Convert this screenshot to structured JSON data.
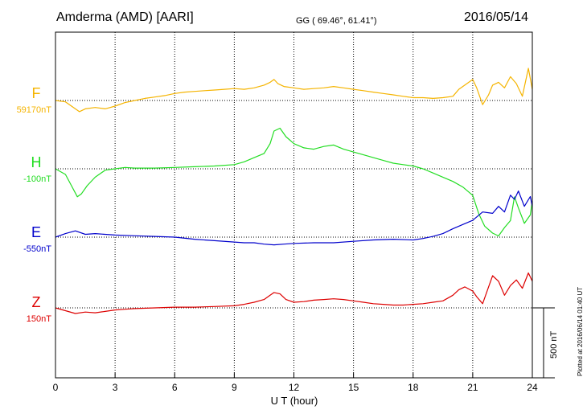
{
  "header": {
    "station": "Amderma (AMD)  [AARI]",
    "coords": "GG ( 69.46°,  61.41°)",
    "date": "2016/05/14"
  },
  "footer": {
    "xlabel": "U T (hour)",
    "plotted": "Plotted at 2016/06/14 01:40 UT",
    "scale_label": "500 nT"
  },
  "colors": {
    "F": "#f5b400",
    "H": "#22dd22",
    "E": "#0000cc",
    "Z": "#dd0000",
    "axes": "#000000"
  },
  "chart_data": {
    "type": "line",
    "title": "Amderma (AMD)  [AARI]",
    "xlabel": "U T (hour)",
    "ylabel": "",
    "xlim": [
      0,
      24
    ],
    "xticks": [
      0,
      3,
      6,
      9,
      12,
      15,
      18,
      21,
      24
    ],
    "grid": true,
    "scale_bar_nT": 500,
    "series": [
      {
        "name": "F",
        "baseline_label": "59170nT",
        "baseline": 59170,
        "x": [
          0,
          0.5,
          1,
          1.2,
          1.5,
          2,
          2.5,
          3,
          3.5,
          4,
          4.5,
          5,
          5.5,
          6,
          6.5,
          7,
          7.5,
          8,
          8.5,
          9,
          9.5,
          10,
          10.5,
          10.8,
          11,
          11.2,
          11.5,
          12,
          12.5,
          13,
          13.5,
          14,
          14.5,
          15,
          15.5,
          16,
          16.5,
          17,
          17.5,
          18,
          18.5,
          19,
          19.5,
          20,
          20.3,
          20.6,
          21,
          21.2,
          21.5,
          21.8,
          22,
          22.3,
          22.6,
          22.9,
          23.2,
          23.5,
          23.8,
          24
        ],
        "values": [
          59170,
          59160,
          59110,
          59090,
          59110,
          59120,
          59110,
          59130,
          59155,
          59170,
          59185,
          59195,
          59205,
          59220,
          59230,
          59235,
          59240,
          59245,
          59250,
          59255,
          59250,
          59260,
          59280,
          59300,
          59320,
          59290,
          59270,
          59260,
          59250,
          59255,
          59260,
          59270,
          59260,
          59250,
          59240,
          59230,
          59220,
          59210,
          59200,
          59190,
          59190,
          59185,
          59190,
          59200,
          59250,
          59280,
          59320,
          59260,
          59140,
          59210,
          59280,
          59300,
          59260,
          59340,
          59290,
          59200,
          59400,
          59250
        ]
      },
      {
        "name": "H",
        "baseline_label": "-100nT",
        "baseline": -100,
        "x": [
          0,
          0.5,
          0.8,
          1.1,
          1.3,
          1.6,
          2,
          2.5,
          3,
          3.5,
          4,
          5,
          6,
          7,
          8,
          9,
          9.5,
          10,
          10.5,
          10.8,
          11,
          11.3,
          11.6,
          12,
          12.5,
          13,
          13.5,
          14,
          14.5,
          15,
          15.5,
          16,
          16.5,
          17,
          17.5,
          18,
          18.5,
          19,
          19.5,
          20,
          20.5,
          21,
          21.3,
          21.6,
          22,
          22.3,
          22.6,
          22.9,
          23.1,
          23.3,
          23.6,
          23.9,
          24
        ],
        "values": [
          -100,
          -140,
          -220,
          -300,
          -280,
          -220,
          -160,
          -110,
          -100,
          -90,
          -95,
          -95,
          -90,
          -85,
          -80,
          -70,
          -50,
          -20,
          10,
          80,
          170,
          190,
          130,
          80,
          50,
          40,
          60,
          70,
          40,
          20,
          0,
          -20,
          -40,
          -60,
          -70,
          -80,
          -100,
          -130,
          -160,
          -190,
          -230,
          -290,
          -420,
          -510,
          -560,
          -580,
          -520,
          -470,
          -300,
          -380,
          -490,
          -430,
          -330
        ]
      },
      {
        "name": "E",
        "baseline_label": "-550nT",
        "baseline": -550,
        "x": [
          0,
          0.5,
          1,
          1.5,
          2,
          3,
          4,
          5,
          6,
          7,
          8,
          9,
          9.5,
          10,
          10.5,
          11,
          11.5,
          12,
          13,
          14,
          15,
          16,
          17,
          18,
          18.5,
          19,
          19.5,
          20,
          20.5,
          21,
          21.5,
          22,
          22.3,
          22.6,
          22.9,
          23.1,
          23.3,
          23.6,
          23.9,
          24
        ],
        "values": [
          -550,
          -525,
          -505,
          -530,
          -525,
          -535,
          -540,
          -545,
          -550,
          -565,
          -575,
          -585,
          -590,
          -590,
          -600,
          -605,
          -600,
          -595,
          -590,
          -590,
          -580,
          -570,
          -565,
          -570,
          -560,
          -545,
          -525,
          -490,
          -460,
          -430,
          -370,
          -380,
          -330,
          -370,
          -250,
          -280,
          -220,
          -330,
          -260,
          -330
        ]
      },
      {
        "name": "Z",
        "baseline_label": "150nT",
        "baseline": 150,
        "x": [
          0,
          0.5,
          1,
          1.5,
          2,
          2.5,
          3,
          3.5,
          4,
          5,
          6,
          7,
          8,
          9,
          9.5,
          10,
          10.5,
          10.8,
          11,
          11.3,
          11.6,
          12,
          12.5,
          13,
          13.5,
          14,
          14.5,
          15,
          15.5,
          16,
          16.5,
          17,
          17.5,
          18,
          18.5,
          19,
          19.5,
          20,
          20.3,
          20.6,
          21,
          21.2,
          21.5,
          21.8,
          22,
          22.3,
          22.6,
          22.9,
          23.2,
          23.5,
          23.8,
          24
        ],
        "values": [
          150,
          130,
          110,
          120,
          115,
          125,
          135,
          140,
          145,
          150,
          155,
          155,
          160,
          165,
          175,
          190,
          210,
          240,
          260,
          250,
          210,
          190,
          195,
          205,
          210,
          215,
          210,
          200,
          190,
          180,
          175,
          170,
          170,
          175,
          180,
          190,
          200,
          240,
          280,
          300,
          270,
          230,
          180,
          300,
          380,
          340,
          240,
          310,
          350,
          290,
          400,
          340
        ]
      }
    ]
  }
}
